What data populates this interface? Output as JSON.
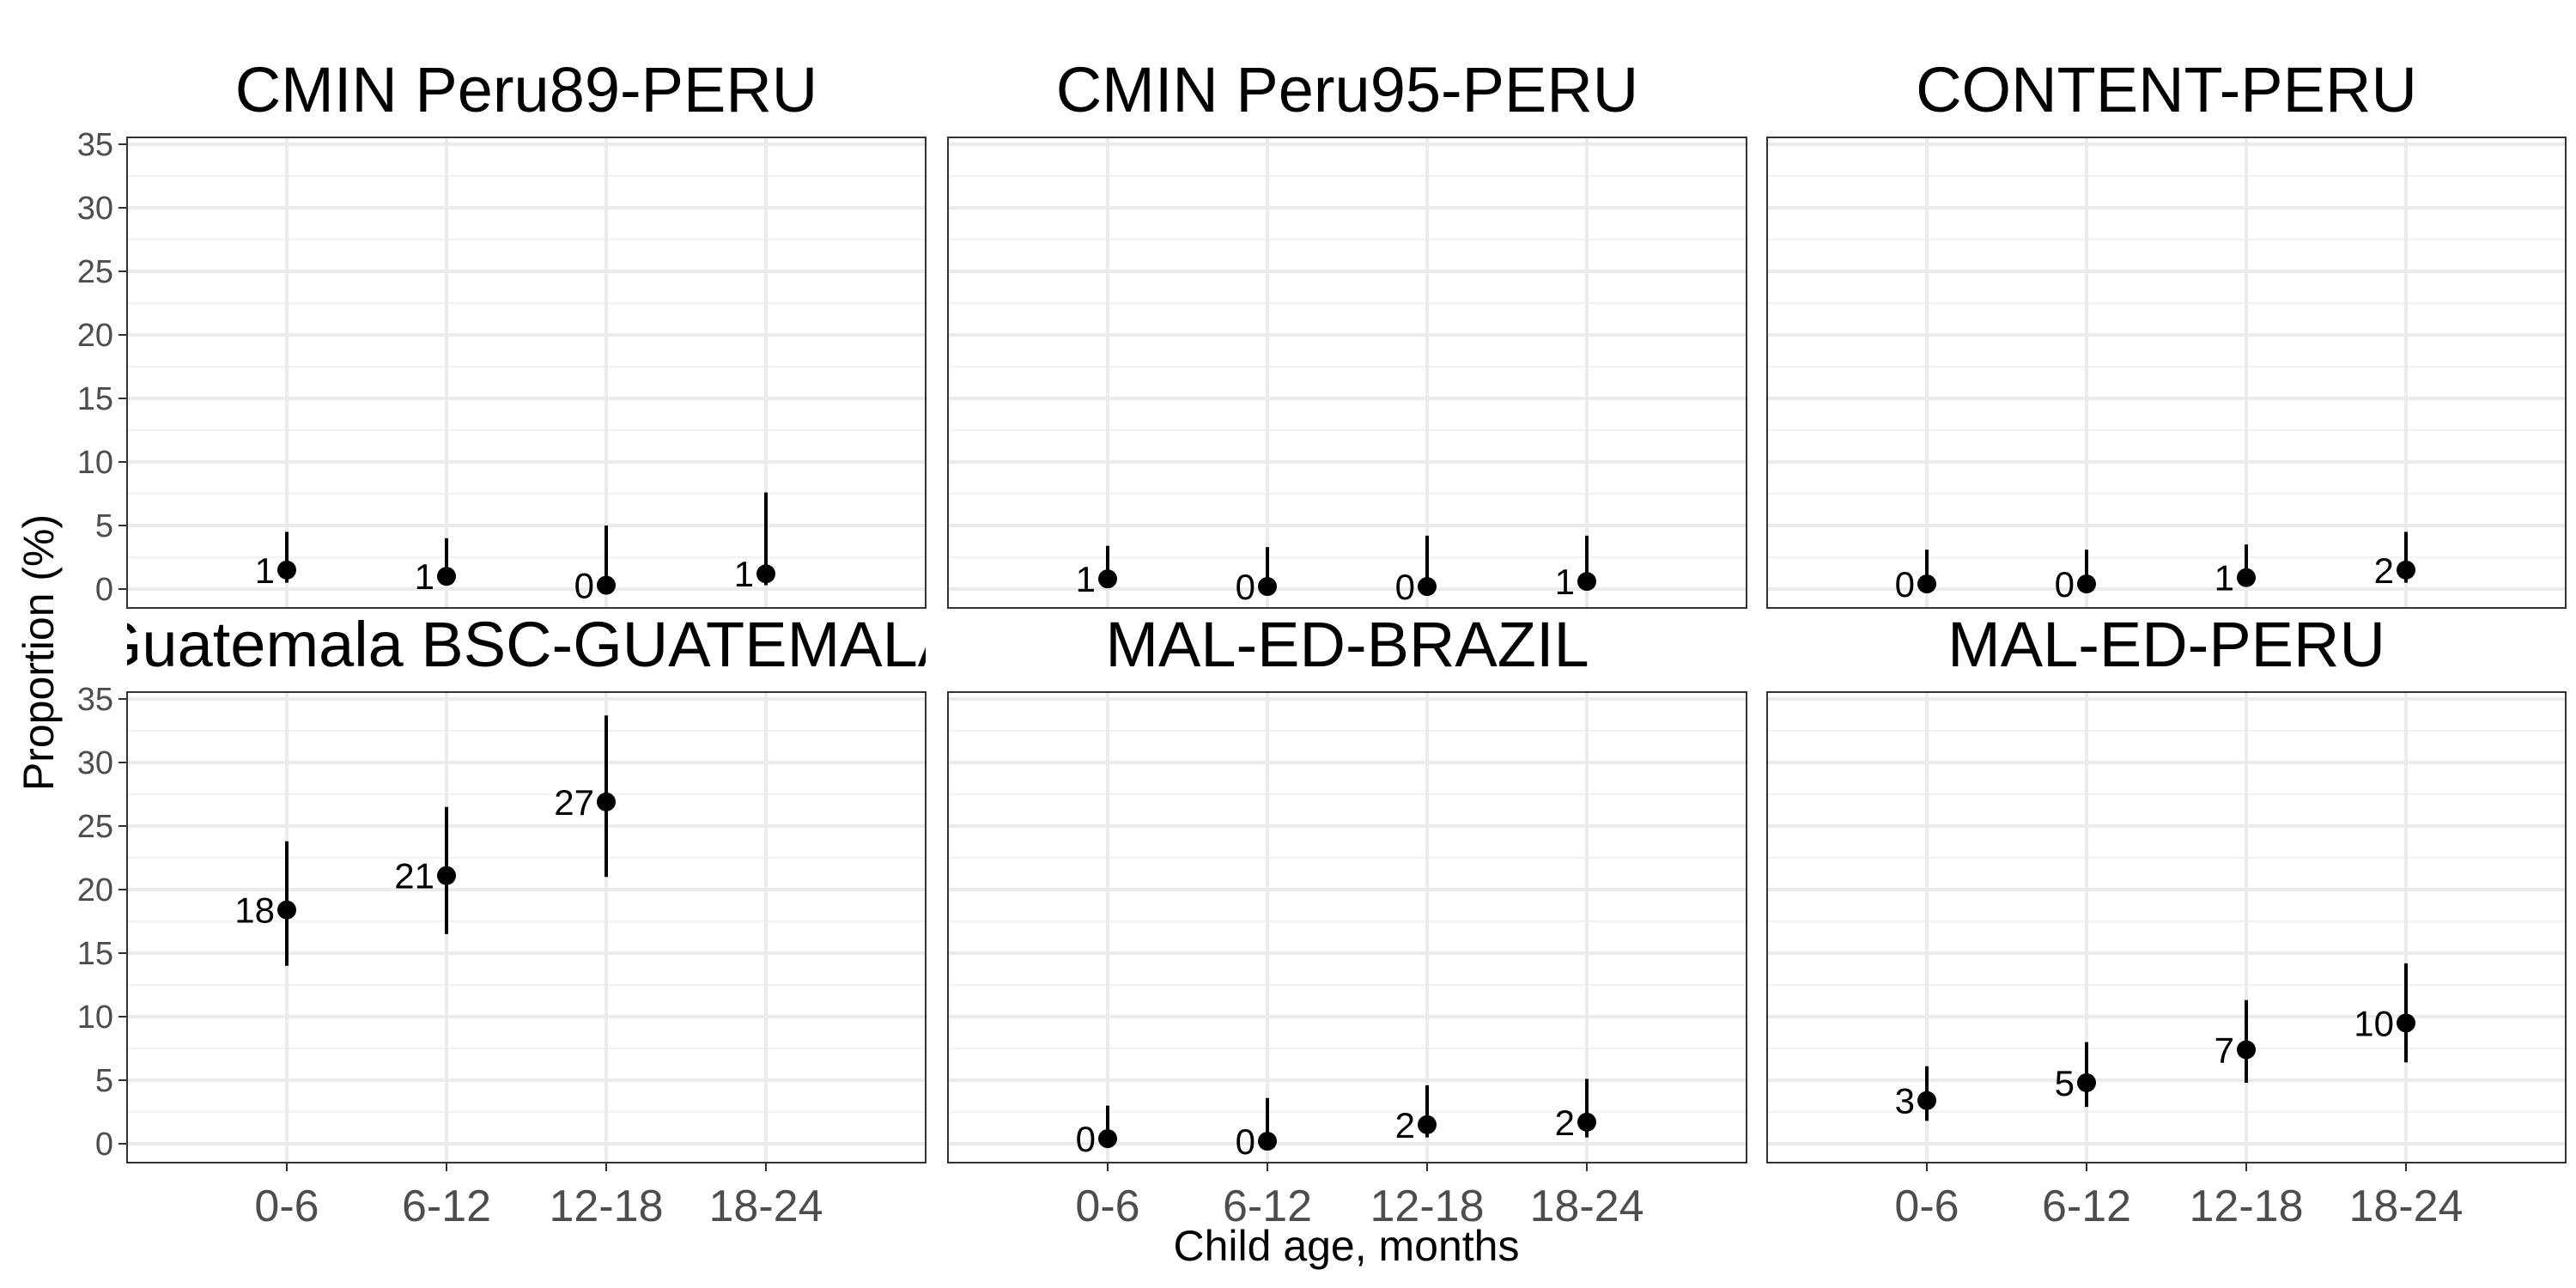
{
  "chart_data": {
    "type": "scatter",
    "xlabel": "Child age, months",
    "ylabel": "Proportion (%)",
    "ylim": [
      0,
      35
    ],
    "y_ticks": [
      0,
      5,
      10,
      15,
      20,
      25,
      30,
      35
    ],
    "categories": [
      "0-6",
      "6-12",
      "12-18",
      "18-24"
    ],
    "grid": true,
    "panels": [
      {
        "title": "CMIN Peru89-PERU",
        "points": [
          {
            "x": "0-6",
            "y": 1.5,
            "lower": 0.5,
            "upper": 4.5,
            "label": "1"
          },
          {
            "x": "6-12",
            "y": 1.0,
            "lower": 0.3,
            "upper": 4.0,
            "label": "1"
          },
          {
            "x": "12-18",
            "y": 0.3,
            "lower": 0.0,
            "upper": 5.0,
            "label": "0"
          },
          {
            "x": "18-24",
            "y": 1.2,
            "lower": 0.3,
            "upper": 7.6,
            "label": "1"
          }
        ]
      },
      {
        "title": "CMIN Peru95-PERU",
        "points": [
          {
            "x": "0-6",
            "y": 0.8,
            "lower": 0.2,
            "upper": 3.4,
            "label": "1"
          },
          {
            "x": "6-12",
            "y": 0.2,
            "lower": 0.0,
            "upper": 3.3,
            "label": "0"
          },
          {
            "x": "12-18",
            "y": 0.2,
            "lower": 0.0,
            "upper": 4.2,
            "label": "0"
          },
          {
            "x": "18-24",
            "y": 0.6,
            "lower": 0.1,
            "upper": 4.2,
            "label": "1"
          }
        ]
      },
      {
        "title": "CONTENT-PERU",
        "points": [
          {
            "x": "0-6",
            "y": 0.4,
            "lower": 0.0,
            "upper": 3.1,
            "label": "0"
          },
          {
            "x": "6-12",
            "y": 0.4,
            "lower": 0.0,
            "upper": 3.1,
            "label": "0"
          },
          {
            "x": "12-18",
            "y": 0.9,
            "lower": 0.2,
            "upper": 3.5,
            "label": "1"
          },
          {
            "x": "18-24",
            "y": 1.5,
            "lower": 0.5,
            "upper": 4.5,
            "label": "2"
          }
        ]
      },
      {
        "title": "Guatemala BSC-GUATEMALA",
        "points": [
          {
            "x": "0-6",
            "y": 18.4,
            "lower": 14.0,
            "upper": 23.8,
            "label": "18"
          },
          {
            "x": "6-12",
            "y": 21.1,
            "lower": 16.5,
            "upper": 26.5,
            "label": "21"
          },
          {
            "x": "12-18",
            "y": 26.9,
            "lower": 21.0,
            "upper": 33.7,
            "label": "27"
          }
        ]
      },
      {
        "title": "MAL-ED-BRAZIL",
        "points": [
          {
            "x": "0-6",
            "y": 0.4,
            "lower": 0.0,
            "upper": 3.0,
            "label": "0"
          },
          {
            "x": "6-12",
            "y": 0.2,
            "lower": 0.0,
            "upper": 3.6,
            "label": "0"
          },
          {
            "x": "12-18",
            "y": 1.5,
            "lower": 0.5,
            "upper": 4.6,
            "label": "2"
          },
          {
            "x": "18-24",
            "y": 1.7,
            "lower": 0.5,
            "upper": 5.1,
            "label": "2"
          }
        ]
      },
      {
        "title": "MAL-ED-PERU",
        "points": [
          {
            "x": "0-6",
            "y": 3.4,
            "lower": 1.8,
            "upper": 6.1,
            "label": "3"
          },
          {
            "x": "6-12",
            "y": 4.8,
            "lower": 2.9,
            "upper": 8.0,
            "label": "5"
          },
          {
            "x": "12-18",
            "y": 7.4,
            "lower": 4.8,
            "upper": 11.3,
            "label": "7"
          },
          {
            "x": "18-24",
            "y": 9.5,
            "lower": 6.4,
            "upper": 14.2,
            "label": "10"
          }
        ]
      }
    ]
  }
}
